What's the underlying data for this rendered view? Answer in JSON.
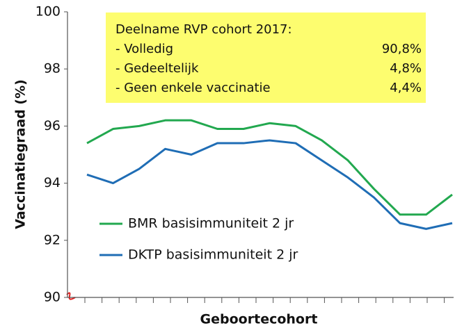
{
  "chart_data": {
    "type": "line",
    "y_label": "Vaccinatiegraad (%)",
    "x_label": "Geboortecohort",
    "categories": [
      null,
      null,
      null,
      null,
      null,
      null,
      null,
      null,
      null,
      null,
      null,
      null,
      null,
      null,
      null
    ],
    "series": [
      {
        "name": "BMR basisimmuniteit 2 jr",
        "color": "#22a84f",
        "values": [
          95.4,
          95.9,
          96.0,
          96.2,
          96.2,
          95.9,
          95.9,
          96.1,
          96.0,
          95.5,
          94.8,
          93.8,
          92.9,
          92.9,
          93.6
        ]
      },
      {
        "name": "DKTP basisimmuniteit 2 jr",
        "color": "#1f6db5",
        "values": [
          94.3,
          94.0,
          94.5,
          95.2,
          95.0,
          95.4,
          95.4,
          95.5,
          95.4,
          94.8,
          94.2,
          93.5,
          92.6,
          92.4,
          92.6
        ]
      }
    ],
    "ylim": [
      90,
      100
    ],
    "yticks": [
      90,
      92,
      94,
      96,
      98,
      100
    ],
    "grid": false,
    "annotation": {
      "title": "Deelname RVP cohort 2017:",
      "rows": [
        {
          "label": "- Volledig",
          "value": "90,8%"
        },
        {
          "label": "- Gedeeltelijk",
          "value": "4,8%"
        },
        {
          "label": "- Geen enkele vaccinatie",
          "value": "4,4%"
        }
      ]
    }
  }
}
